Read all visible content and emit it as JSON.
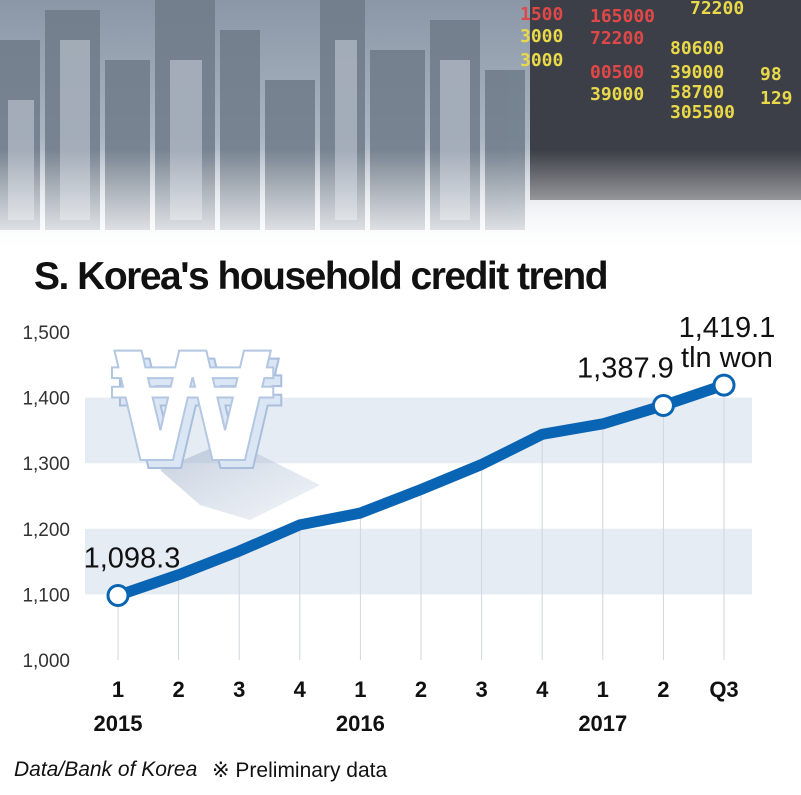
{
  "chart_data": {
    "type": "line",
    "title": "S. Korea's household credit trend",
    "categories": [
      "1",
      "2",
      "3",
      "4",
      "1",
      "2",
      "3",
      "4",
      "1",
      "2",
      "Q3"
    ],
    "year_labels": [
      "2015",
      "2016",
      "2017"
    ],
    "series": [
      {
        "values": [
          1098.3,
          1130,
          1166,
          1206,
          1224,
          1260,
          1298,
          1344,
          1360,
          1387.9,
          1419.1
        ]
      }
    ],
    "yticks": [
      "1,000",
      "1,100",
      "1,200",
      "1,300",
      "1,400",
      "1,500"
    ],
    "ylim": [
      1000,
      1500
    ],
    "grid": false,
    "annotations": [
      {
        "index": 0,
        "text": "1,098.3"
      },
      {
        "index": 9,
        "text": "1,387.9"
      },
      {
        "index": 10,
        "text": "1,419.1",
        "unit": "tln won"
      }
    ],
    "colors": {
      "line": "#0a64b4",
      "band": "#e6ecf4"
    }
  },
  "footer": {
    "source": "Data/Bank of Korea",
    "note": "※ Preliminary data"
  }
}
